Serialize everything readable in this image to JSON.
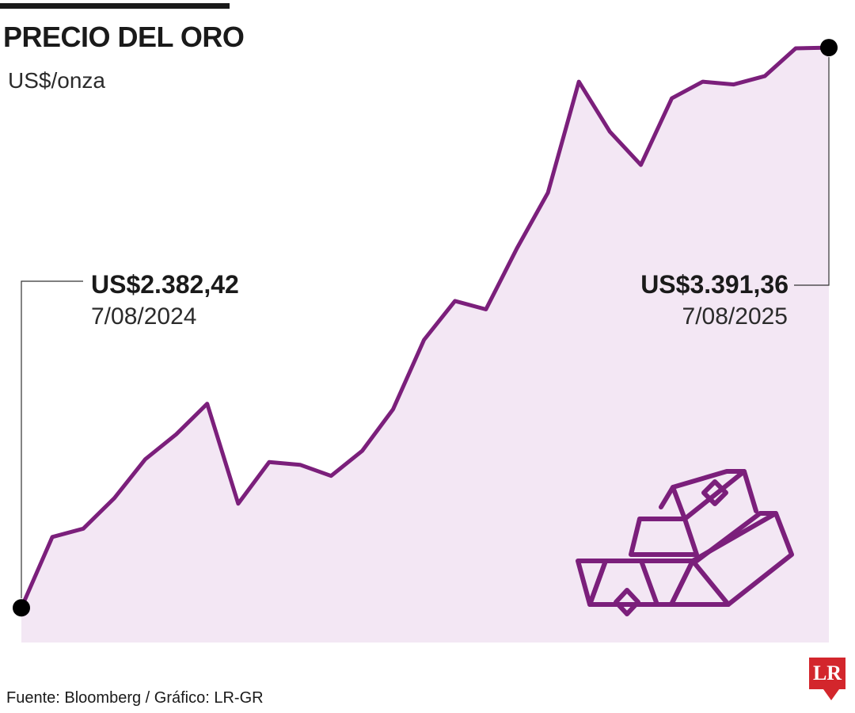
{
  "header": {
    "title": "PRECIO DEL ORO",
    "unit": "US$/onza"
  },
  "callouts": {
    "start": {
      "value": "US$2.382,42",
      "date": "7/08/2024"
    },
    "end": {
      "value": "US$3.391,36",
      "date": "7/08/2025"
    }
  },
  "footer": {
    "source": "Fuente: Bloomberg / Gráfico: LR-GR",
    "logo": "LR"
  },
  "colors": {
    "line": "#7b1f7b",
    "area": "#f3e7f4",
    "marker": "#000000",
    "logo": "#d3262c"
  },
  "chart_data": {
    "type": "area",
    "x": [
      "2024-08-07",
      "2024-08-21",
      "2024-09-04",
      "2024-09-18",
      "2024-10-02",
      "2024-10-16",
      "2024-10-30",
      "2024-11-13",
      "2024-11-27",
      "2024-12-11",
      "2024-12-25",
      "2025-01-08",
      "2025-01-22",
      "2025-02-05",
      "2025-02-19",
      "2025-03-05",
      "2025-03-19",
      "2025-04-02",
      "2025-04-16",
      "2025-04-30",
      "2025-05-14",
      "2025-05-28",
      "2025-06-11",
      "2025-06-25",
      "2025-07-09",
      "2025-07-23",
      "2025-08-07"
    ],
    "values": [
      2382.42,
      2510,
      2525,
      2580,
      2650,
      2695,
      2750,
      2570,
      2645,
      2640,
      2620,
      2665,
      2740,
      2865,
      2935,
      2920,
      3030,
      3130,
      3330,
      3240,
      3180,
      3300,
      3330,
      3325,
      3340,
      3390,
      3391.36
    ],
    "xlabel": "",
    "ylabel": "US$/onza",
    "ylim": [
      2320,
      3420
    ],
    "area_fill": true,
    "grid": false,
    "legend": "none"
  }
}
